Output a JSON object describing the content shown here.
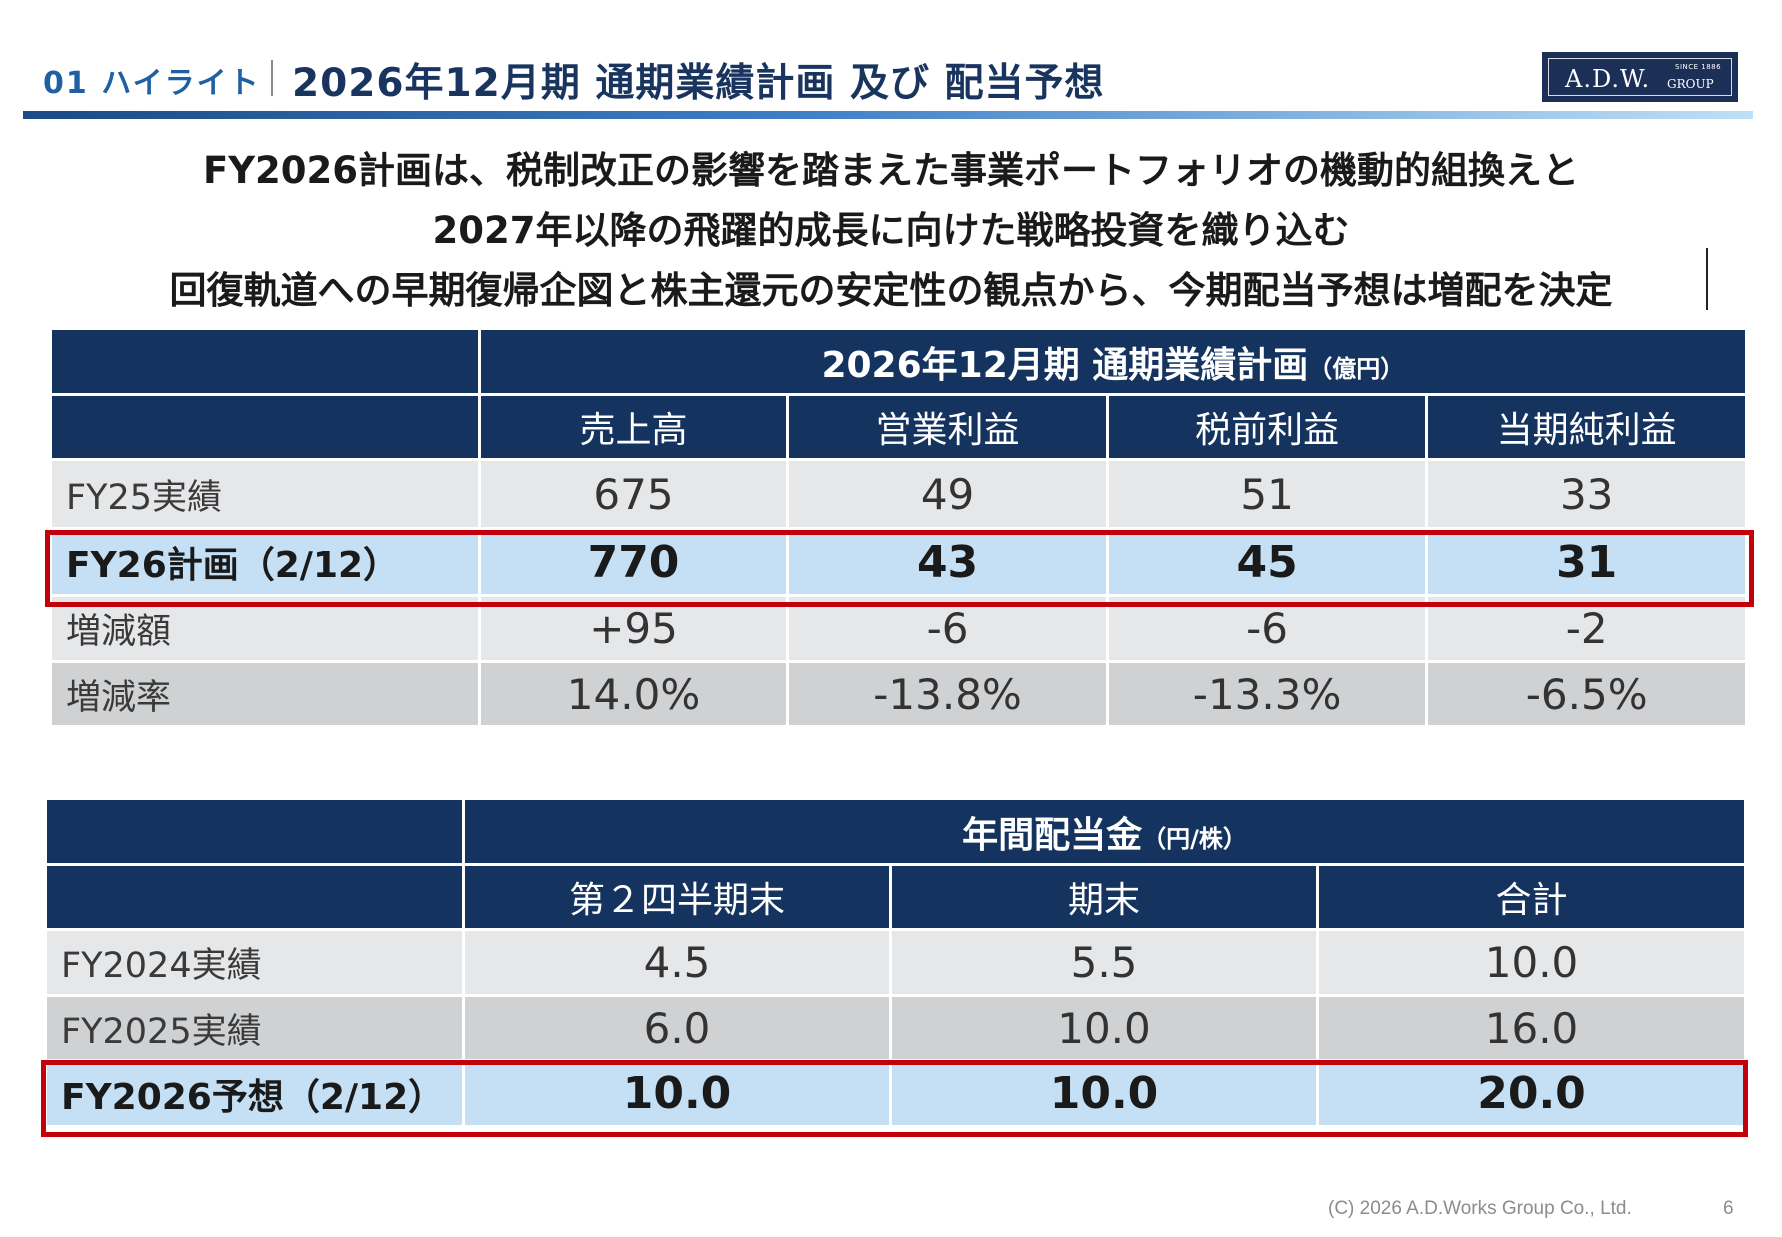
{
  "header": {
    "section": "01 ハイライト",
    "title": "2026年12月期 通期業績計画 及び 配当予想",
    "logo": {
      "main": "A.D.W.",
      "group": "GROUP",
      "since": "SINCE 1886"
    }
  },
  "headline": {
    "line1": "FY2026計画は、税制改正の影響を踏まえた事業ポートフォリオの機動的組換えと",
    "line2": "2027年以降の飛躍的成長に向けた戦略投資を織り込む",
    "line3": "回復軌道への早期復帰企図と株主還元の安定性の観点から、今期配当予想は増配を決定"
  },
  "plan_table": {
    "title": "2026年12月期 通期業績計画",
    "unit": "（億円）",
    "columns": [
      "売上高",
      "営業利益",
      "税前利益",
      "当期純利益"
    ],
    "rows": [
      {
        "label": "FY25実績",
        "values": [
          "675",
          "49",
          "51",
          "33"
        ]
      },
      {
        "label": "FY26計画（2/12）",
        "values": [
          "770",
          "43",
          "45",
          "31"
        ]
      },
      {
        "label": "増減額",
        "values": [
          "+95",
          "-6",
          "-6",
          "-2"
        ]
      },
      {
        "label": "増減率",
        "values": [
          "14.0%",
          "-13.8%",
          "-13.3%",
          "-6.5%"
        ]
      }
    ]
  },
  "dividend_table": {
    "title": "年間配当金",
    "unit": "（円/株）",
    "columns": [
      "第２四半期末",
      "期末",
      "合計"
    ],
    "rows": [
      {
        "label": "FY2024実績",
        "values": [
          "4.5",
          "5.5",
          "10.0"
        ]
      },
      {
        "label": "FY2025実績",
        "values": [
          "6.0",
          "10.0",
          "16.0"
        ]
      },
      {
        "label": "FY2026予想（2/12）",
        "values": [
          "10.0",
          "10.0",
          "20.0"
        ]
      }
    ]
  },
  "colors": {
    "header_bg": "#15335f",
    "highlight_row": "#c5e0f4",
    "highlight_border": "#c4000b",
    "row_light": "#e6e7e9",
    "row_mid": "#d0d1d3"
  },
  "footer": {
    "copyright": "(C) 2026  A.D.Works Group Co., Ltd.",
    "page": "6"
  }
}
